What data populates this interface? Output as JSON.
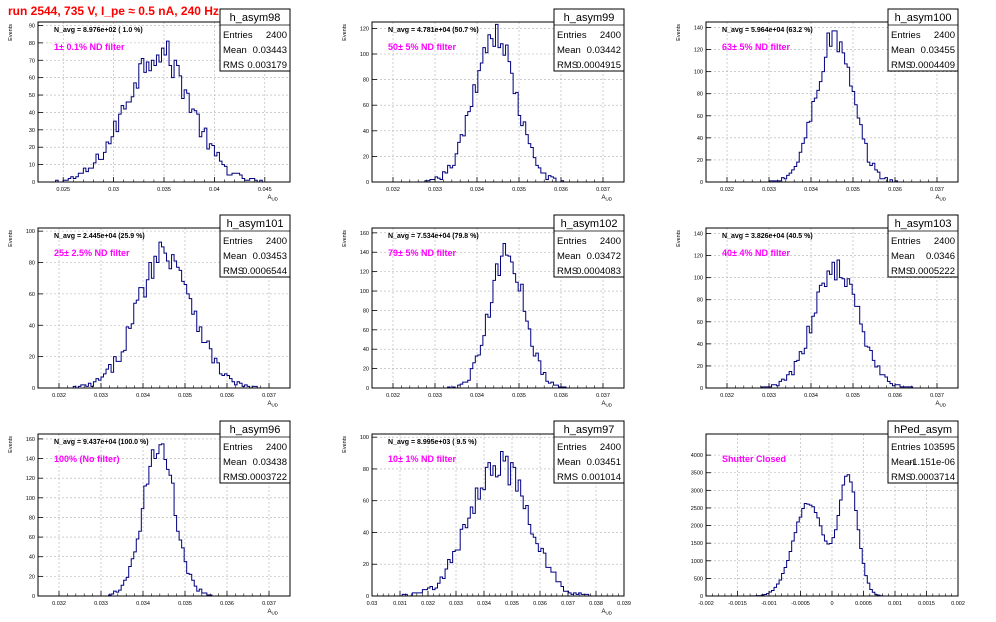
{
  "run_title": "run 2544,   735 V, I_pe ≈ 0.5 nA, 240 Hz",
  "colors": {
    "histogram": "#000080",
    "annotation": "#ff00ff",
    "title": "#ff0000",
    "grid": "#b0b0b0"
  },
  "chart_data": [
    {
      "type": "bar",
      "name": "h_asym98",
      "navg": "N_avg = 8.976e+02 ( 1.0 %)",
      "filter": "1± 0.1% ND filter",
      "stats": {
        "Entries": "2400",
        "Mean": "0.03443",
        "RMS": "0.003179"
      },
      "ylabel": "Events",
      "xlabel": "A_UD",
      "xlim": [
        0.0225,
        0.0475
      ],
      "ylim": [
        0,
        92
      ],
      "xticks": [
        "0.025",
        "0.03",
        "0.035",
        "0.04",
        "0.045"
      ],
      "xtick_values": [
        0.025,
        0.03,
        0.035,
        0.04,
        0.045
      ],
      "yticks": [
        "0",
        "10",
        "20",
        "30",
        "40",
        "50",
        "60",
        "70",
        "80",
        "90"
      ],
      "ytick_values": [
        0,
        10,
        20,
        30,
        40,
        50,
        60,
        70,
        80,
        90
      ],
      "mean": 0.03443,
      "rms": 0.003179,
      "entries": 2400
    },
    {
      "type": "bar",
      "name": "h_asym99",
      "navg": "N_avg = 4.781e+04 (50.7 %)",
      "filter": "50± 5% ND filter",
      "stats": {
        "Entries": "2400",
        "Mean": "0.03442",
        "RMS": "0.0004915"
      },
      "ylabel": "Events",
      "xlabel": "A_UD",
      "xlim": [
        0.0315,
        0.0375
      ],
      "ylim": [
        0,
        125
      ],
      "xticks": [
        "0.032",
        "0.033",
        "0.034",
        "0.035",
        "0.036",
        "0.037"
      ],
      "xtick_values": [
        0.032,
        0.033,
        0.034,
        0.035,
        0.036,
        0.037
      ],
      "yticks": [
        "0",
        "20",
        "40",
        "60",
        "80",
        "100",
        "120"
      ],
      "ytick_values": [
        0,
        20,
        40,
        60,
        80,
        100,
        120
      ],
      "mean": 0.03442,
      "rms": 0.0004915,
      "entries": 2400
    },
    {
      "type": "bar",
      "name": "h_asym100",
      "navg": "N_avg = 5.964e+04 (63.2 %)",
      "filter": "63± 5% ND filter",
      "stats": {
        "Entries": "2400",
        "Mean": "0.03455",
        "RMS": "0.0004409"
      },
      "ylabel": "Events",
      "xlabel": "A_UD",
      "xlim": [
        0.0315,
        0.0375
      ],
      "ylim": [
        0,
        145
      ],
      "xticks": [
        "0.032",
        "0.033",
        "0.034",
        "0.035",
        "0.036",
        "0.037"
      ],
      "xtick_values": [
        0.032,
        0.033,
        0.034,
        0.035,
        0.036,
        0.037
      ],
      "yticks": [
        "0",
        "20",
        "40",
        "60",
        "80",
        "100",
        "120",
        "140"
      ],
      "ytick_values": [
        0,
        20,
        40,
        60,
        80,
        100,
        120,
        140
      ],
      "mean": 0.03455,
      "rms": 0.0004409,
      "entries": 2400
    },
    {
      "type": "bar",
      "name": "h_asym101",
      "navg": "N_avg = 2.445e+04 (25.9 %)",
      "filter": "25± 2.5% ND filter",
      "stats": {
        "Entries": "2400",
        "Mean": "0.03453",
        "RMS": "0.0006544"
      },
      "ylabel": "Events",
      "xlabel": "A_UD",
      "xlim": [
        0.0315,
        0.0375
      ],
      "ylim": [
        0,
        102
      ],
      "xticks": [
        "0.032",
        "0.033",
        "0.034",
        "0.035",
        "0.036",
        "0.037"
      ],
      "xtick_values": [
        0.032,
        0.033,
        0.034,
        0.035,
        0.036,
        0.037
      ],
      "yticks": [
        "0",
        "20",
        "40",
        "60",
        "80",
        "100"
      ],
      "ytick_values": [
        0,
        20,
        40,
        60,
        80,
        100
      ],
      "mean": 0.03453,
      "rms": 0.0006544,
      "entries": 2400
    },
    {
      "type": "bar",
      "name": "h_asym102",
      "navg": "N_avg = 7.534e+04 (79.8 %)",
      "filter": "79± 5% ND filter",
      "stats": {
        "Entries": "2400",
        "Mean": "0.03472",
        "RMS": "0.0004083"
      },
      "ylabel": "Events",
      "xlabel": "A_UD",
      "xlim": [
        0.0315,
        0.0375
      ],
      "ylim": [
        0,
        165
      ],
      "xticks": [
        "0.032",
        "0.033",
        "0.034",
        "0.035",
        "0.036",
        "0.037"
      ],
      "xtick_values": [
        0.032,
        0.033,
        0.034,
        0.035,
        0.036,
        0.037
      ],
      "yticks": [
        "0",
        "20",
        "40",
        "60",
        "80",
        "100",
        "120",
        "140",
        "160"
      ],
      "ytick_values": [
        0,
        20,
        40,
        60,
        80,
        100,
        120,
        140,
        160
      ],
      "mean": 0.03472,
      "rms": 0.0004083,
      "entries": 2400
    },
    {
      "type": "bar",
      "name": "h_asym103",
      "navg": "N_avg = 3.826e+04 (40.5 %)",
      "filter": "40± 4% ND filter",
      "stats": {
        "Entries": "2400",
        "Mean": "0.0346",
        "RMS": "0.0005222"
      },
      "ylabel": "Events",
      "xlabel": "A_UD",
      "xlim": [
        0.0315,
        0.0375
      ],
      "ylim": [
        0,
        145
      ],
      "xticks": [
        "0.032",
        "0.033",
        "0.034",
        "0.035",
        "0.036",
        "0.037"
      ],
      "xtick_values": [
        0.032,
        0.033,
        0.034,
        0.035,
        0.036,
        0.037
      ],
      "yticks": [
        "0",
        "20",
        "40",
        "60",
        "80",
        "100",
        "120",
        "140"
      ],
      "ytick_values": [
        0,
        20,
        40,
        60,
        80,
        100,
        120,
        140
      ],
      "mean": 0.0346,
      "rms": 0.0005222,
      "entries": 2400
    },
    {
      "type": "bar",
      "name": "h_asym96",
      "navg": "N_avg = 9.437e+04 (100.0 %)",
      "filter": "100% (No filter)",
      "stats": {
        "Entries": "2400",
        "Mean": "0.03438",
        "RMS": "0.0003722"
      },
      "ylabel": "Events",
      "xlabel": "A_UD",
      "xlim": [
        0.0315,
        0.0375
      ],
      "ylim": [
        0,
        165
      ],
      "xticks": [
        "0.032",
        "0.033",
        "0.034",
        "0.035",
        "0.036",
        "0.037"
      ],
      "xtick_values": [
        0.032,
        0.033,
        0.034,
        0.035,
        0.036,
        0.037
      ],
      "yticks": [
        "0",
        "20",
        "40",
        "60",
        "80",
        "100",
        "120",
        "140",
        "160"
      ],
      "ytick_values": [
        0,
        20,
        40,
        60,
        80,
        100,
        120,
        140,
        160
      ],
      "mean": 0.03438,
      "rms": 0.0003722,
      "entries": 2400
    },
    {
      "type": "bar",
      "name": "h_asym97",
      "navg": "N_avg = 8.995e+03 ( 9.5 %)",
      "filter": "10± 1% ND filter",
      "stats": {
        "Entries": "2400",
        "Mean": "0.03451",
        "RMS": "0.001014"
      },
      "ylabel": "Events",
      "xlabel": "A_UD",
      "xlim": [
        0.03,
        0.039
      ],
      "ylim": [
        0,
        102
      ],
      "xticks": [
        "0.03",
        "0.031",
        "0.032",
        "0.033",
        "0.034",
        "0.035",
        "0.036",
        "0.037",
        "0.038",
        "0.039"
      ],
      "xtick_values": [
        0.03,
        0.031,
        0.032,
        0.033,
        0.034,
        0.035,
        0.036,
        0.037,
        0.038,
        0.039
      ],
      "yticks": [
        "0",
        "20",
        "40",
        "60",
        "80",
        "100"
      ],
      "ytick_values": [
        0,
        20,
        40,
        60,
        80,
        100
      ],
      "mean": 0.03451,
      "rms": 0.001014,
      "entries": 2400
    },
    {
      "type": "bar",
      "name": "hPed_asym",
      "navg": "",
      "filter": "Shutter Closed",
      "stats": {
        "Entries": "103595",
        "Mean": "-1.151e-06",
        "RMS": "0.0003714"
      },
      "ylabel": "",
      "xlabel": "",
      "xlim": [
        -0.002,
        0.002
      ],
      "ylim": [
        0,
        4600
      ],
      "xticks": [
        "-0.002",
        "-0.0015",
        "-0.001",
        "-0.0005",
        "0",
        "0.0005",
        "0.001",
        "0.0015",
        "0.002"
      ],
      "xtick_values": [
        -0.002,
        -0.0015,
        -0.001,
        -0.0005,
        0,
        0.0005,
        0.001,
        0.0015,
        0.002
      ],
      "yticks": [
        "0",
        "500",
        "1000",
        "1500",
        "2000",
        "2500",
        "3000",
        "3500",
        "4000"
      ],
      "ytick_values": [
        0,
        500,
        1000,
        1500,
        2000,
        2500,
        3000,
        3500,
        4000
      ],
      "mean": -1.151e-06,
      "rms": 0.0003714,
      "entries": 103595,
      "peaks": [
        {
          "center": -0.00037,
          "sigma": 0.00024,
          "height": 2650
        },
        {
          "center": 0.00026,
          "sigma": 0.00015,
          "height": 3350
        }
      ]
    }
  ]
}
